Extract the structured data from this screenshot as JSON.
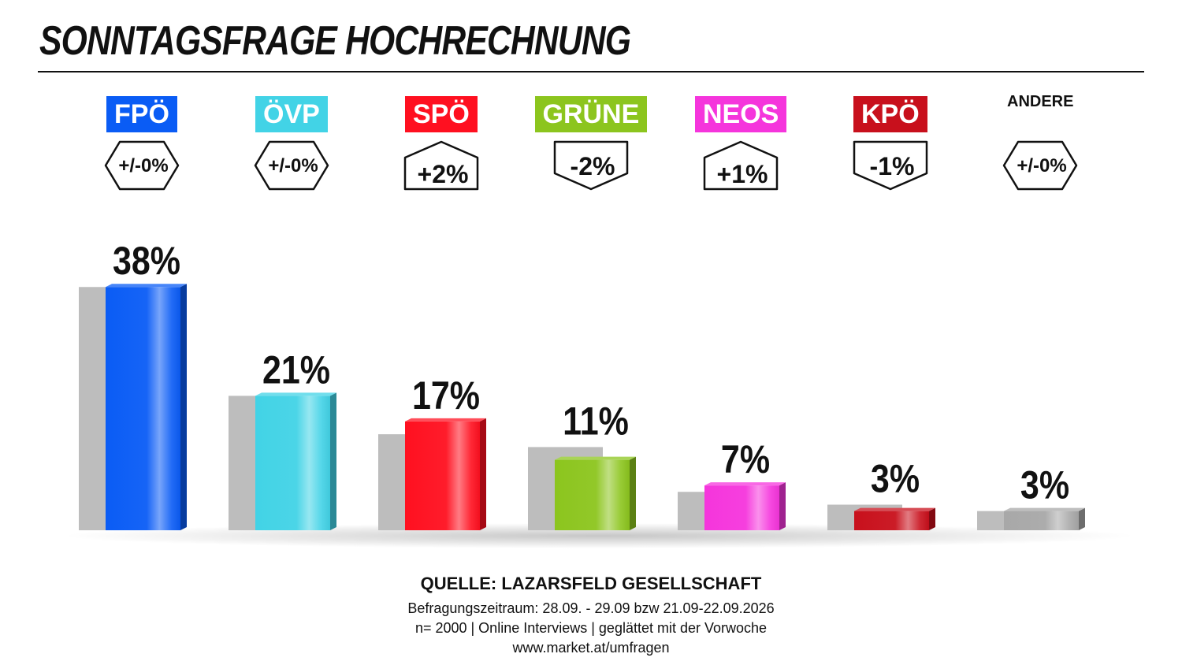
{
  "title": "SONNTAGSFRAGE HOCHRECHNUNG",
  "chart_data": {
    "type": "bar",
    "title": "SONNTAGSFRAGE HOCHRECHNUNG",
    "categories": [
      "FPÖ",
      "ÖVP",
      "SPÖ",
      "GRÜNE",
      "NEOS",
      "KPÖ",
      "ANDERE"
    ],
    "series": [
      {
        "values": [
          38,
          21,
          17,
          11,
          7,
          3,
          3
        ]
      },
      {
        "values": [
          38,
          21,
          15,
          13,
          6,
          4,
          3
        ]
      }
    ],
    "value_labels": [
      "38%",
      "21%",
      "17%",
      "11%",
      "7%",
      "3%",
      "3%"
    ],
    "changes": [
      "+/-0%",
      "+/-0%",
      "+2%",
      "-2%",
      "+1%",
      "-1%",
      "+/-0%"
    ],
    "change_direction": [
      "neutral",
      "neutral",
      "up",
      "down",
      "up",
      "down",
      "neutral"
    ],
    "colors": [
      "#0a5cf5",
      "#42d3e6",
      "#ff1020",
      "#8cc51e",
      "#f535dc",
      "#c8101c",
      "#a8a8a8"
    ],
    "previous_color": "#bdbdbd",
    "ylim": [
      0,
      40
    ],
    "xlabel": "",
    "ylabel": ""
  },
  "footer": {
    "source": "QUELLE: LAZARSFELD GESELLSCHAFT",
    "period": "Befragungszeitraum: 28.09. - 29.09 bzw 21.09-22.09.2026",
    "sample": "n= 2000 | Online Interviews | geglättet mit der Vorwoche",
    "url": "www.market.at/umfragen"
  }
}
